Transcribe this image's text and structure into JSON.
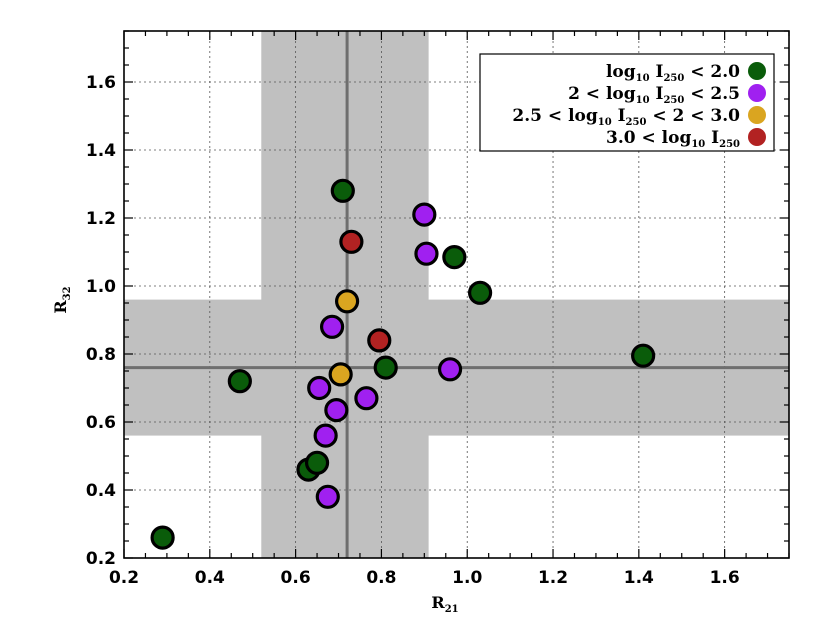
{
  "chart_data": {
    "type": "scatter",
    "xlabel_main": "R",
    "xlabel_sub": "21",
    "ylabel_main": "R",
    "ylabel_sub": "32",
    "xlim": [
      0.2,
      1.75
    ],
    "ylim": [
      0.2,
      1.75
    ],
    "xticks": [
      0.2,
      0.4,
      0.6,
      0.8,
      1.0,
      1.2,
      1.4,
      1.6
    ],
    "xtick_labels": [
      "0.2",
      "0.4",
      "0.6",
      "0.8",
      "1.0",
      "1.2",
      "1.4",
      "1.6"
    ],
    "yticks": [
      0.2,
      0.4,
      0.6,
      0.8,
      1.0,
      1.2,
      1.4,
      1.6
    ],
    "ytick_labels": [
      "0.2",
      "0.4",
      "0.6",
      "0.8",
      "1.0",
      "1.2",
      "1.4",
      "1.6"
    ],
    "grid": true,
    "reference": {
      "x_mean": 0.72,
      "x_band": [
        0.52,
        0.91
      ],
      "y_mean": 0.76,
      "y_band": [
        0.56,
        0.96
      ],
      "band_color": "#c0c0c0",
      "line_color": "#6e6e6e"
    },
    "legend_position": "top-right",
    "series": [
      {
        "color": "#0a5c0a",
        "legend": {
          "pre": "log",
          "sub1": "10",
          "mid": " I",
          "sub2": "250",
          "post": " < 2.0"
        },
        "points": [
          [
            0.29,
            0.26
          ],
          [
            0.47,
            0.72
          ],
          [
            0.63,
            0.46
          ],
          [
            0.65,
            0.48
          ],
          [
            0.71,
            1.28
          ],
          [
            0.81,
            0.76
          ],
          [
            0.97,
            1.085
          ],
          [
            1.03,
            0.98
          ],
          [
            1.41,
            0.795
          ]
        ]
      },
      {
        "color": "#a020f0",
        "legend": {
          "pre": "2 < log",
          "sub1": "10",
          "mid": " I",
          "sub2": "250",
          "post": " < 2.5"
        },
        "points": [
          [
            0.655,
            0.7
          ],
          [
            0.67,
            0.56
          ],
          [
            0.675,
            0.38
          ],
          [
            0.685,
            0.88
          ],
          [
            0.695,
            0.635
          ],
          [
            0.765,
            0.67
          ],
          [
            0.9,
            1.21
          ],
          [
            0.905,
            1.095
          ],
          [
            0.96,
            0.755
          ]
        ]
      },
      {
        "color": "#daa520",
        "legend": {
          "pre": "2.5 < log",
          "sub1": "10",
          "mid": " I",
          "sub2": "250",
          "post": " < 2 < 3.0"
        },
        "points": [
          [
            0.705,
            0.74
          ],
          [
            0.72,
            0.955
          ]
        ]
      },
      {
        "color": "#b22222",
        "legend": {
          "pre": "3.0 < log",
          "sub1": "10",
          "mid": " I",
          "sub2": "250",
          "post": ""
        },
        "points": [
          [
            0.73,
            1.13
          ],
          [
            0.795,
            0.84
          ]
        ]
      }
    ]
  }
}
